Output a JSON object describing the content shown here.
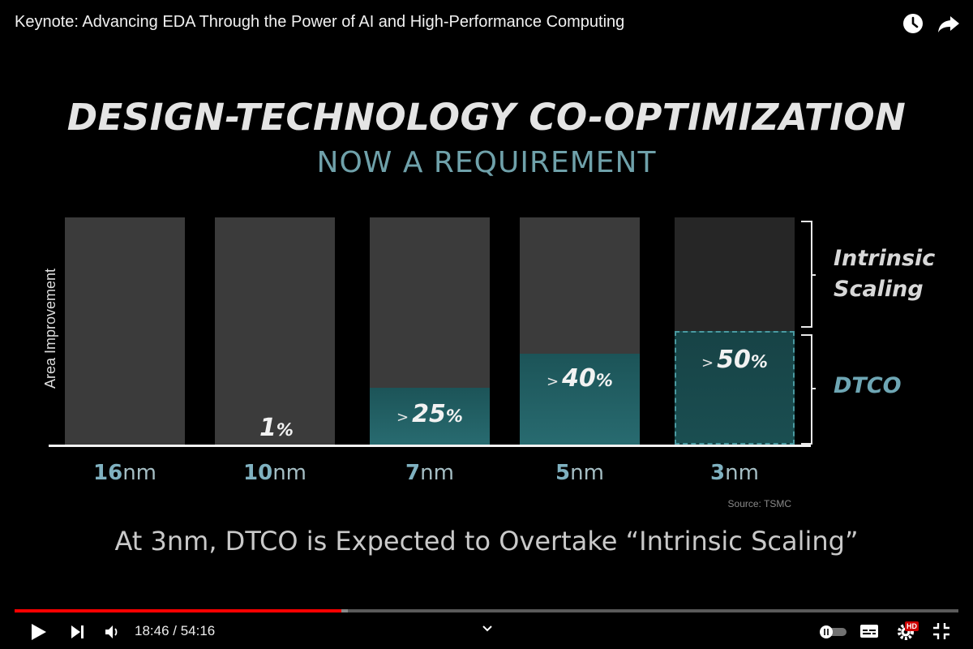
{
  "player": {
    "title": "Keynote: Advancing EDA Through the Power of AI and High-Performance Computing",
    "current_time": "18:46",
    "duration": "54:16",
    "time_display": "18:46 / 54:16",
    "progress_fraction": 0.3458,
    "buffered_fraction": 0.353,
    "hd_badge": "HD",
    "colors": {
      "progress": "#ff0000",
      "hd_badge": "#cc0000"
    },
    "icons": [
      "watch-later-icon",
      "share-icon",
      "play-icon",
      "next-icon",
      "volume-icon",
      "chevron-down-icon",
      "autoplay-toggle-icon",
      "subtitles-icon",
      "settings-icon",
      "exit-fullscreen-icon"
    ]
  },
  "slide": {
    "title": "DESIGN-TECHNOLOGY CO-OPTIMIZATION",
    "subtitle": "NOW A REQUIREMENT",
    "caption": "At 3nm, DTCO is Expected to Overtake “Intrinsic Scaling”",
    "source": "Source: TSMC"
  },
  "chart_data": {
    "type": "bar",
    "ylabel": "Area Improvement",
    "xlabel": "",
    "categories": [
      {
        "num": "16",
        "unit": "nm"
      },
      {
        "num": "10",
        "unit": "nm"
      },
      {
        "num": "7",
        "unit": "nm"
      },
      {
        "num": "5",
        "unit": "nm"
      },
      {
        "num": "3",
        "unit": "nm"
      }
    ],
    "dtco_share": [
      0,
      1,
      25,
      40,
      50
    ],
    "value_labels": [
      {
        "prefix": "",
        "num": "",
        "pct": ""
      },
      {
        "prefix": "",
        "num": "1",
        "pct": "%"
      },
      {
        "prefix": ">",
        "num": "25",
        "pct": "%"
      },
      {
        "prefix": ">",
        "num": "40",
        "pct": "%"
      },
      {
        "prefix": ">",
        "num": "50",
        "pct": "%"
      }
    ],
    "legend": {
      "intrinsic": "Intrinsic Scaling",
      "dtco": "DTCO"
    },
    "colors": {
      "intrinsic": "#3b3b3b",
      "dtco": "#286b70",
      "title": "#e4e4e4",
      "subtitle": "#6fa1aa"
    }
  }
}
